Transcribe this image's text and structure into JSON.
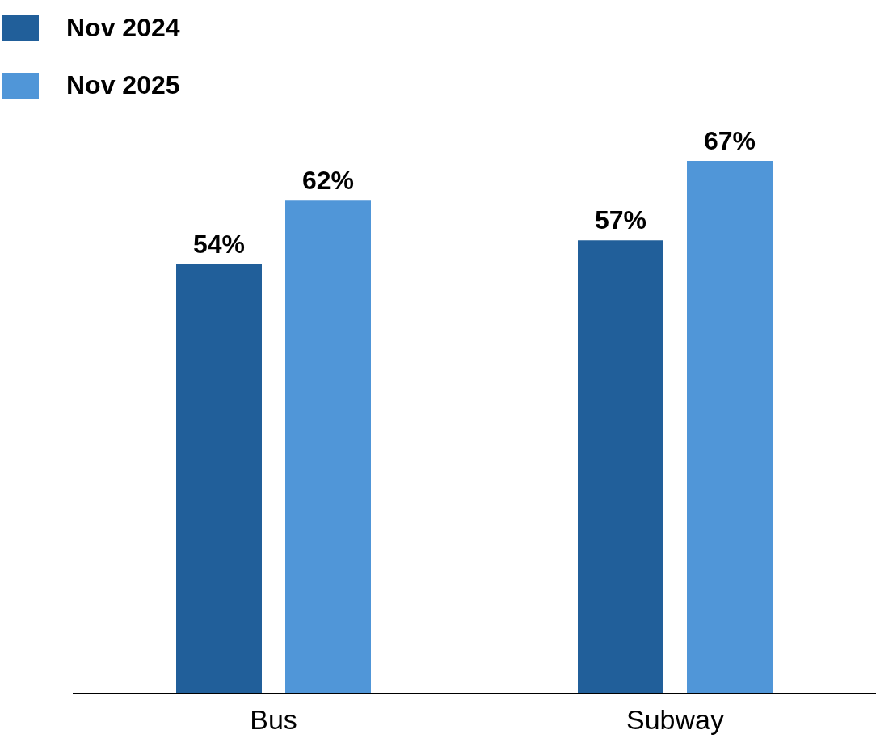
{
  "chart_data": {
    "type": "bar",
    "categories": [
      "Bus",
      "Subway"
    ],
    "series": [
      {
        "name": "Nov 2024",
        "color": "#215f9a",
        "values": [
          54,
          57
        ],
        "value_labels": [
          "54%",
          "57%"
        ]
      },
      {
        "name": "Nov 2025",
        "color": "#5096d8",
        "values": [
          62,
          67
        ],
        "value_labels": [
          "62%",
          "67%"
        ]
      }
    ],
    "grid": false,
    "legend": "top left"
  }
}
